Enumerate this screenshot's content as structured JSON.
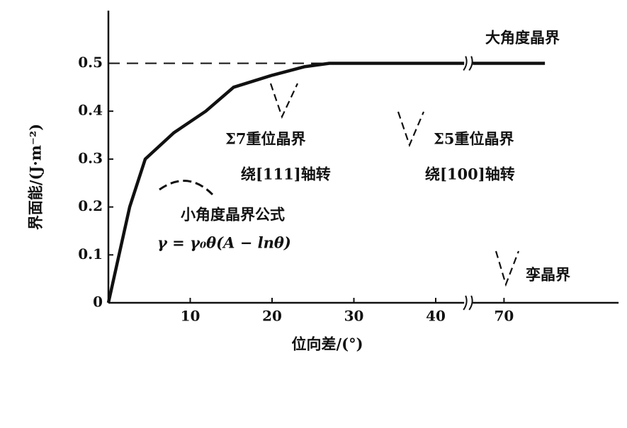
{
  "chart_data": {
    "type": "line",
    "x_label": "位向差/(°)",
    "y_label": "界面能/(J·m⁻²)",
    "xlim": [
      0,
      84
    ],
    "x_break": [
      44,
      66
    ],
    "xticks": [
      10,
      20,
      30,
      40,
      70
    ],
    "ylim": [
      0,
      0.61
    ],
    "yticks": [
      0,
      0.1,
      0.2,
      0.3,
      0.4,
      0.5
    ],
    "reference_line": 0.5,
    "series": [
      {
        "name": "大角度晶界",
        "color": "#111111",
        "x": [
          0,
          1.3,
          2.6,
          4.5,
          8,
          11.9,
          15.3,
          20,
          24,
          27,
          44,
          66,
          75
        ],
        "values": [
          0,
          0.1,
          0.2,
          0.3,
          0.355,
          0.4,
          0.45,
          0.475,
          0.493,
          0.5,
          0.5,
          0.5,
          0.5
        ]
      }
    ],
    "annotations": [
      "Σ7重位晶界",
      "绕[111]轴转",
      "Σ5重位晶界",
      "绕[100]轴转",
      "小角度晶界公式",
      "γ = γ₀θ(A − lnθ)",
      "孪晶界"
    ]
  }
}
